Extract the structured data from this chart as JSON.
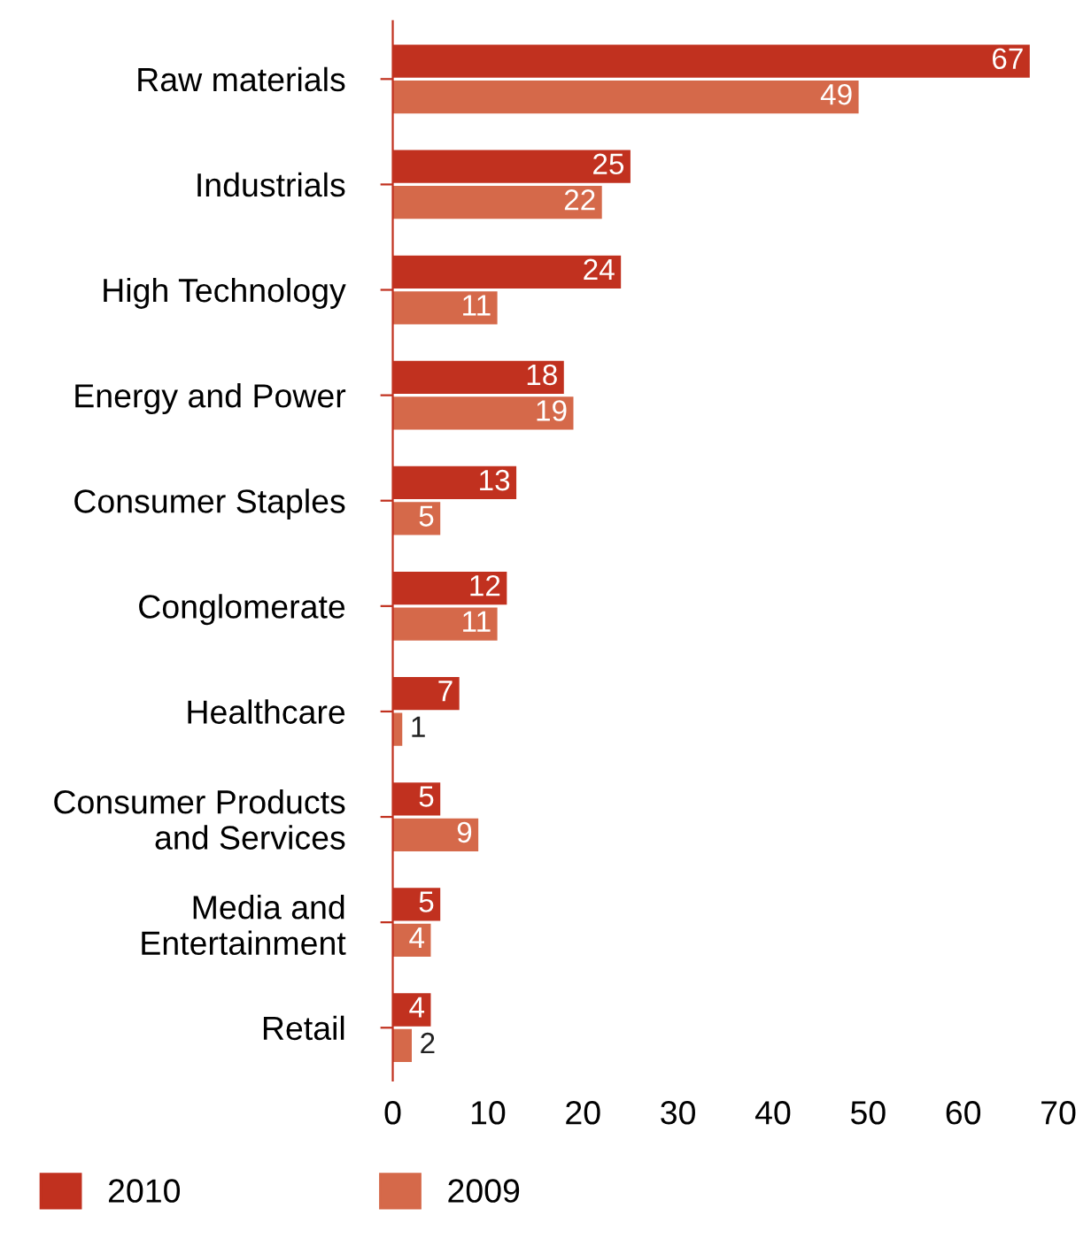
{
  "chart_data": {
    "type": "bar",
    "orientation": "horizontal",
    "categories": [
      "Raw materials",
      "Industrials",
      "High Technology",
      "Energy and Power",
      "Consumer Staples",
      "Conglomerate",
      "Healthcare",
      "Consumer Products\nand Services",
      "Media and\nEntertainment",
      "Retail"
    ],
    "series": [
      {
        "name": "2010",
        "color": "#c1311f",
        "values": [
          67,
          25,
          24,
          18,
          13,
          12,
          7,
          5,
          5,
          4
        ]
      },
      {
        "name": "2009",
        "color": "#d5694a",
        "values": [
          49,
          22,
          11,
          19,
          5,
          11,
          1,
          9,
          4,
          2
        ]
      }
    ],
    "xlim": [
      0,
      70
    ],
    "xticks": [
      0,
      10,
      20,
      30,
      40,
      50,
      60,
      70
    ],
    "data_labels": true,
    "grid": false,
    "legend": "bottom"
  }
}
